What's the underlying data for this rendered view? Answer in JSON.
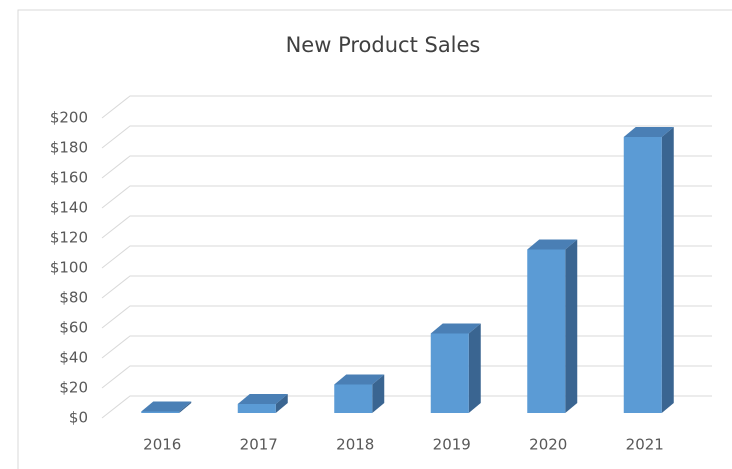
{
  "chart_data": {
    "type": "bar3d",
    "title": "New Product Sales",
    "categories": [
      "2016",
      "2017",
      "2018",
      "2019",
      "2020",
      "2021"
    ],
    "values": [
      1,
      6,
      19,
      53,
      109,
      184
    ],
    "color": "#5b9bd5",
    "side_color": "#3a6591",
    "top_color": "#4a7fb5",
    "ylim": [
      0,
      200
    ],
    "yticks": [
      {
        "value": 0,
        "label": "$0"
      },
      {
        "value": 20,
        "label": "$20"
      },
      {
        "value": 40,
        "label": "$40"
      },
      {
        "value": 60,
        "label": "$60"
      },
      {
        "value": 80,
        "label": "$80"
      },
      {
        "value": 100,
        "label": "$100"
      },
      {
        "value": 120,
        "label": "$120"
      },
      {
        "value": 140,
        "label": "$140"
      },
      {
        "value": 160,
        "label": "$160"
      },
      {
        "value": 180,
        "label": "$180"
      },
      {
        "value": 200,
        "label": "$200"
      }
    ],
    "grid": true
  }
}
